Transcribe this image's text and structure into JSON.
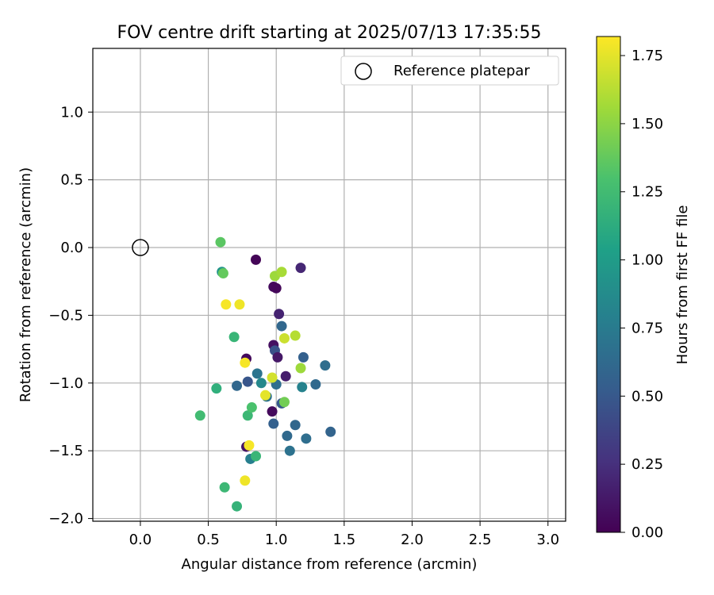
{
  "chart_data": {
    "type": "scatter",
    "title": "FOV centre drift starting at 2025/07/13 17:35:55",
    "xlabel": "Angular distance from reference (arcmin)",
    "ylabel": "Rotation from reference (arcmin)",
    "xlim": [
      -0.35,
      3.13
    ],
    "ylim": [
      -2.02,
      1.47
    ],
    "xticks": [
      0.0,
      0.5,
      1.0,
      1.5,
      2.0,
      2.5,
      3.0
    ],
    "xtick_labels": [
      "0.0",
      "0.5",
      "1.0",
      "1.5",
      "2.0",
      "2.5",
      "3.0"
    ],
    "yticks": [
      1.0,
      0.5,
      0.0,
      -0.5,
      -1.0,
      -1.5,
      -2.0
    ],
    "ytick_labels": [
      "1.0",
      "0.5",
      "0.0",
      "−0.5",
      "−1.0",
      "−1.5",
      "−2.0"
    ],
    "grid": true,
    "legend": {
      "position": "top-right",
      "label": "Reference platepar"
    },
    "reference_point": {
      "x": 0.0,
      "y": 0.0
    },
    "colorbar": {
      "label": "Hours from first FF file",
      "range": [
        0.0,
        1.82
      ],
      "ticks": [
        0.0,
        0.25,
        0.5,
        0.75,
        1.0,
        1.25,
        1.5,
        1.75
      ],
      "tick_labels": [
        "0.00",
        "0.25",
        "0.50",
        "0.75",
        "1.00",
        "1.25",
        "1.50",
        "1.75"
      ],
      "colormap": "viridis"
    },
    "points": [
      {
        "x": 0.85,
        "y": -0.09,
        "c": 0.02
      },
      {
        "x": 1.18,
        "y": -0.15,
        "c": 0.2
      },
      {
        "x": 0.98,
        "y": -0.29,
        "c": 0.05
      },
      {
        "x": 1.0,
        "y": -0.3,
        "c": 0.03
      },
      {
        "x": 1.02,
        "y": -0.49,
        "c": 0.18
      },
      {
        "x": 1.04,
        "y": -0.58,
        "c": 0.6
      },
      {
        "x": 0.98,
        "y": -0.72,
        "c": 0.08
      },
      {
        "x": 0.99,
        "y": -0.76,
        "c": 0.45
      },
      {
        "x": 1.01,
        "y": -0.81,
        "c": 0.12
      },
      {
        "x": 1.2,
        "y": -0.81,
        "c": 0.55
      },
      {
        "x": 0.78,
        "y": -0.82,
        "c": 0.05
      },
      {
        "x": 1.36,
        "y": -0.87,
        "c": 0.65
      },
      {
        "x": 0.86,
        "y": -0.93,
        "c": 0.7
      },
      {
        "x": 1.07,
        "y": -0.95,
        "c": 0.15
      },
      {
        "x": 0.71,
        "y": -1.02,
        "c": 0.6
      },
      {
        "x": 0.79,
        "y": -0.99,
        "c": 0.48
      },
      {
        "x": 0.89,
        "y": -1.0,
        "c": 0.85
      },
      {
        "x": 1.0,
        "y": -1.01,
        "c": 0.65
      },
      {
        "x": 1.29,
        "y": -1.01,
        "c": 0.62
      },
      {
        "x": 1.19,
        "y": -1.03,
        "c": 0.8
      },
      {
        "x": 0.93,
        "y": -1.1,
        "c": 0.68
      },
      {
        "x": 1.04,
        "y": -1.15,
        "c": 0.5
      },
      {
        "x": 0.97,
        "y": -1.21,
        "c": 0.05
      },
      {
        "x": 0.98,
        "y": -1.3,
        "c": 0.55
      },
      {
        "x": 1.14,
        "y": -1.31,
        "c": 0.6
      },
      {
        "x": 1.08,
        "y": -1.39,
        "c": 0.62
      },
      {
        "x": 1.22,
        "y": -1.41,
        "c": 0.65
      },
      {
        "x": 1.4,
        "y": -1.36,
        "c": 0.58
      },
      {
        "x": 1.1,
        "y": -1.5,
        "c": 0.68
      },
      {
        "x": 0.78,
        "y": -1.47,
        "c": 0.1
      },
      {
        "x": 0.81,
        "y": -1.56,
        "c": 0.78
      },
      {
        "x": 0.6,
        "y": -0.18,
        "c": 0.95
      },
      {
        "x": 0.59,
        "y": 0.04,
        "c": 1.35
      },
      {
        "x": 0.61,
        "y": -0.19,
        "c": 1.38
      },
      {
        "x": 0.99,
        "y": -0.21,
        "c": 1.55
      },
      {
        "x": 1.04,
        "y": -0.18,
        "c": 1.58
      },
      {
        "x": 0.69,
        "y": -0.66,
        "c": 1.2
      },
      {
        "x": 0.56,
        "y": -1.04,
        "c": 1.15
      },
      {
        "x": 0.44,
        "y": -1.24,
        "c": 1.25
      },
      {
        "x": 0.79,
        "y": -1.24,
        "c": 1.22
      },
      {
        "x": 0.82,
        "y": -1.18,
        "c": 1.3
      },
      {
        "x": 1.06,
        "y": -1.14,
        "c": 1.42
      },
      {
        "x": 0.85,
        "y": -1.54,
        "c": 1.2
      },
      {
        "x": 0.62,
        "y": -1.77,
        "c": 1.22
      },
      {
        "x": 0.71,
        "y": -1.91,
        "c": 1.18
      },
      {
        "x": 1.14,
        "y": -0.65,
        "c": 1.62
      },
      {
        "x": 1.06,
        "y": -0.67,
        "c": 1.68
      },
      {
        "x": 1.18,
        "y": -0.89,
        "c": 1.55
      },
      {
        "x": 0.97,
        "y": -0.96,
        "c": 1.7
      },
      {
        "x": 0.63,
        "y": -0.42,
        "c": 1.8
      },
      {
        "x": 0.73,
        "y": -0.42,
        "c": 1.78
      },
      {
        "x": 0.77,
        "y": -0.85,
        "c": 1.8
      },
      {
        "x": 0.92,
        "y": -1.09,
        "c": 1.75
      },
      {
        "x": 0.8,
        "y": -1.46,
        "c": 1.8
      },
      {
        "x": 0.77,
        "y": -1.72,
        "c": 1.78
      }
    ]
  }
}
